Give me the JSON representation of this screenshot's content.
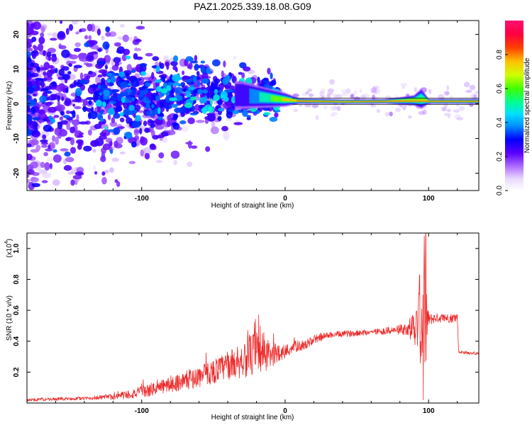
{
  "title": "PAZ1.2025.339.18.08.G09",
  "colors": {
    "snr_line": "#ee2a2a",
    "frame": "#000000",
    "ridge_peak": "#ff1030",
    "ridge_edge": "#00ff60"
  },
  "chart_data": [
    {
      "type": "heatmap",
      "xlabel": "Height of straight line (km)",
      "ylabel": "Frequency (Hz)",
      "xlim": [
        -180,
        135
      ],
      "ylim": [
        -25,
        24
      ],
      "xticks": [
        -100,
        0,
        100
      ],
      "xtick_labels": [
        "-100",
        "0",
        "100"
      ],
      "yticks": [
        -20,
        -10,
        0,
        10,
        20
      ],
      "ytick_labels": [
        "-20",
        "-10",
        "0",
        "10",
        "20"
      ],
      "colorbar": {
        "label": "Normalized spectral amplitude",
        "range": [
          0,
          1
        ],
        "ticks": [
          0,
          0.2,
          0.4,
          0.6,
          0.8
        ],
        "tick_labels": [
          "0.0",
          "0.2",
          "0.4",
          "0.6",
          "0.8"
        ]
      },
      "ridge": {
        "description_points_km": [
          -30,
          0,
          10,
          40,
          70,
          90,
          95,
          100,
          135
        ],
        "center_hz": [
          2.5,
          1.2,
          0.8,
          0.6,
          0.7,
          1.0,
          1.5,
          0.7,
          0.7
        ],
        "amplitude": [
          0.25,
          0.75,
          0.85,
          0.9,
          0.9,
          0.5,
          0.45,
          0.85,
          0.85
        ],
        "spread_hz": [
          8,
          4,
          1.5,
          1.2,
          1.2,
          3,
          6,
          1.3,
          1.3
        ]
      }
    },
    {
      "type": "line",
      "xlabel": "Height of straight line (km)",
      "ylabel": "SNR (10 * v/v)",
      "y_scale_label": "(x10",
      "y_scale_exp": "4",
      "y_scale_close": ")",
      "xlim": [
        -180,
        135
      ],
      "ylim": [
        0,
        1.1
      ],
      "xticks": [
        -100,
        0,
        100
      ],
      "xtick_labels": [
        "-100",
        "0",
        "100"
      ],
      "yticks": [
        0.2,
        0.4,
        0.6,
        0.8,
        1.0
      ],
      "ytick_labels": [
        "0.2",
        "0.4",
        "0.6",
        "0.8",
        "1.0"
      ],
      "envelope_x": [
        -180,
        -140,
        -120,
        -100,
        -80,
        -60,
        -40,
        -25,
        -18,
        -10,
        -5,
        0,
        5,
        15,
        20,
        30,
        45,
        60,
        75,
        85,
        92,
        94,
        96,
        98,
        100,
        105,
        118,
        120,
        121,
        135
      ],
      "envelope_mean": [
        0.02,
        0.03,
        0.04,
        0.07,
        0.12,
        0.17,
        0.24,
        0.3,
        0.33,
        0.3,
        0.33,
        0.33,
        0.36,
        0.38,
        0.41,
        0.44,
        0.45,
        0.46,
        0.47,
        0.48,
        0.5,
        0.5,
        0.52,
        0.53,
        0.54,
        0.55,
        0.55,
        0.56,
        0.33,
        0.32
      ],
      "envelope_noise": [
        0.01,
        0.01,
        0.02,
        0.04,
        0.05,
        0.07,
        0.09,
        0.13,
        0.18,
        0.08,
        0.06,
        0.05,
        0.04,
        0.03,
        0.03,
        0.02,
        0.02,
        0.02,
        0.025,
        0.04,
        0.15,
        0.35,
        0.4,
        0.4,
        0.04,
        0.03,
        0.03,
        0.03,
        0.01,
        0.01
      ],
      "spikes": [
        {
          "x": -18.5,
          "y": 0.57
        },
        {
          "x": -26,
          "y": 0.47
        },
        {
          "x": -8,
          "y": 0.45
        },
        {
          "x": 93.5,
          "y": 0.82
        },
        {
          "x": 97,
          "y": 1.08
        },
        {
          "x": 96.2,
          "y": 0.02
        }
      ]
    }
  ]
}
